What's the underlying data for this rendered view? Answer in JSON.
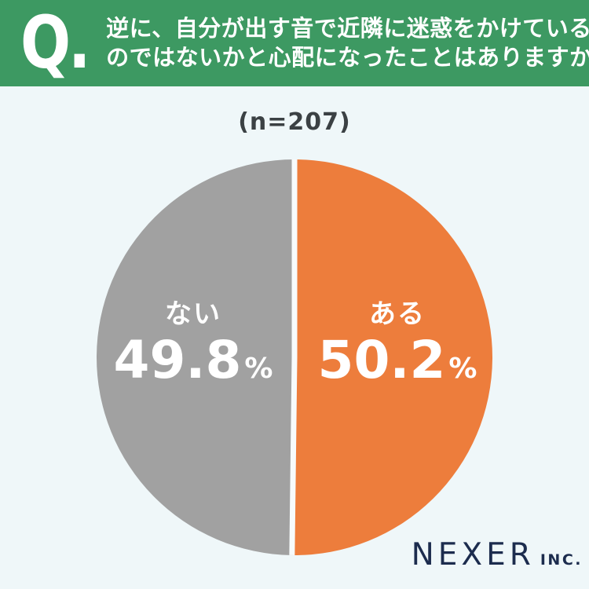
{
  "header": {
    "q_label": "Q.",
    "question_lines": [
      "逆に、自分が出す音で近隣に迷惑をかけている",
      "のではないかと心配になったことはありますか？"
    ],
    "bg_color": "#3D9962",
    "text_color": "#FFFFFF"
  },
  "chart_data": {
    "type": "pie",
    "title": "(n=207)",
    "n": 207,
    "start_angle_deg": 0,
    "direction": "clockwise",
    "divider_color": "#F7FBFC",
    "slices": [
      {
        "label": "ある",
        "value": 50.2,
        "display": "50.2",
        "unit": "%",
        "color": "#ED7D3C"
      },
      {
        "label": "ない",
        "value": 49.8,
        "display": "49.8",
        "unit": "%",
        "color": "#A1A1A1"
      }
    ],
    "legend_position": "inside",
    "label_text_color": "#FFFFFF"
  },
  "footer": {
    "brand": "NEXER",
    "brand_suffix": "INC.",
    "color": "#1C2C4E"
  },
  "colors": {
    "background": "#EFF7F9",
    "header_green": "#3D9962",
    "n_label_text": "#3B4144"
  }
}
